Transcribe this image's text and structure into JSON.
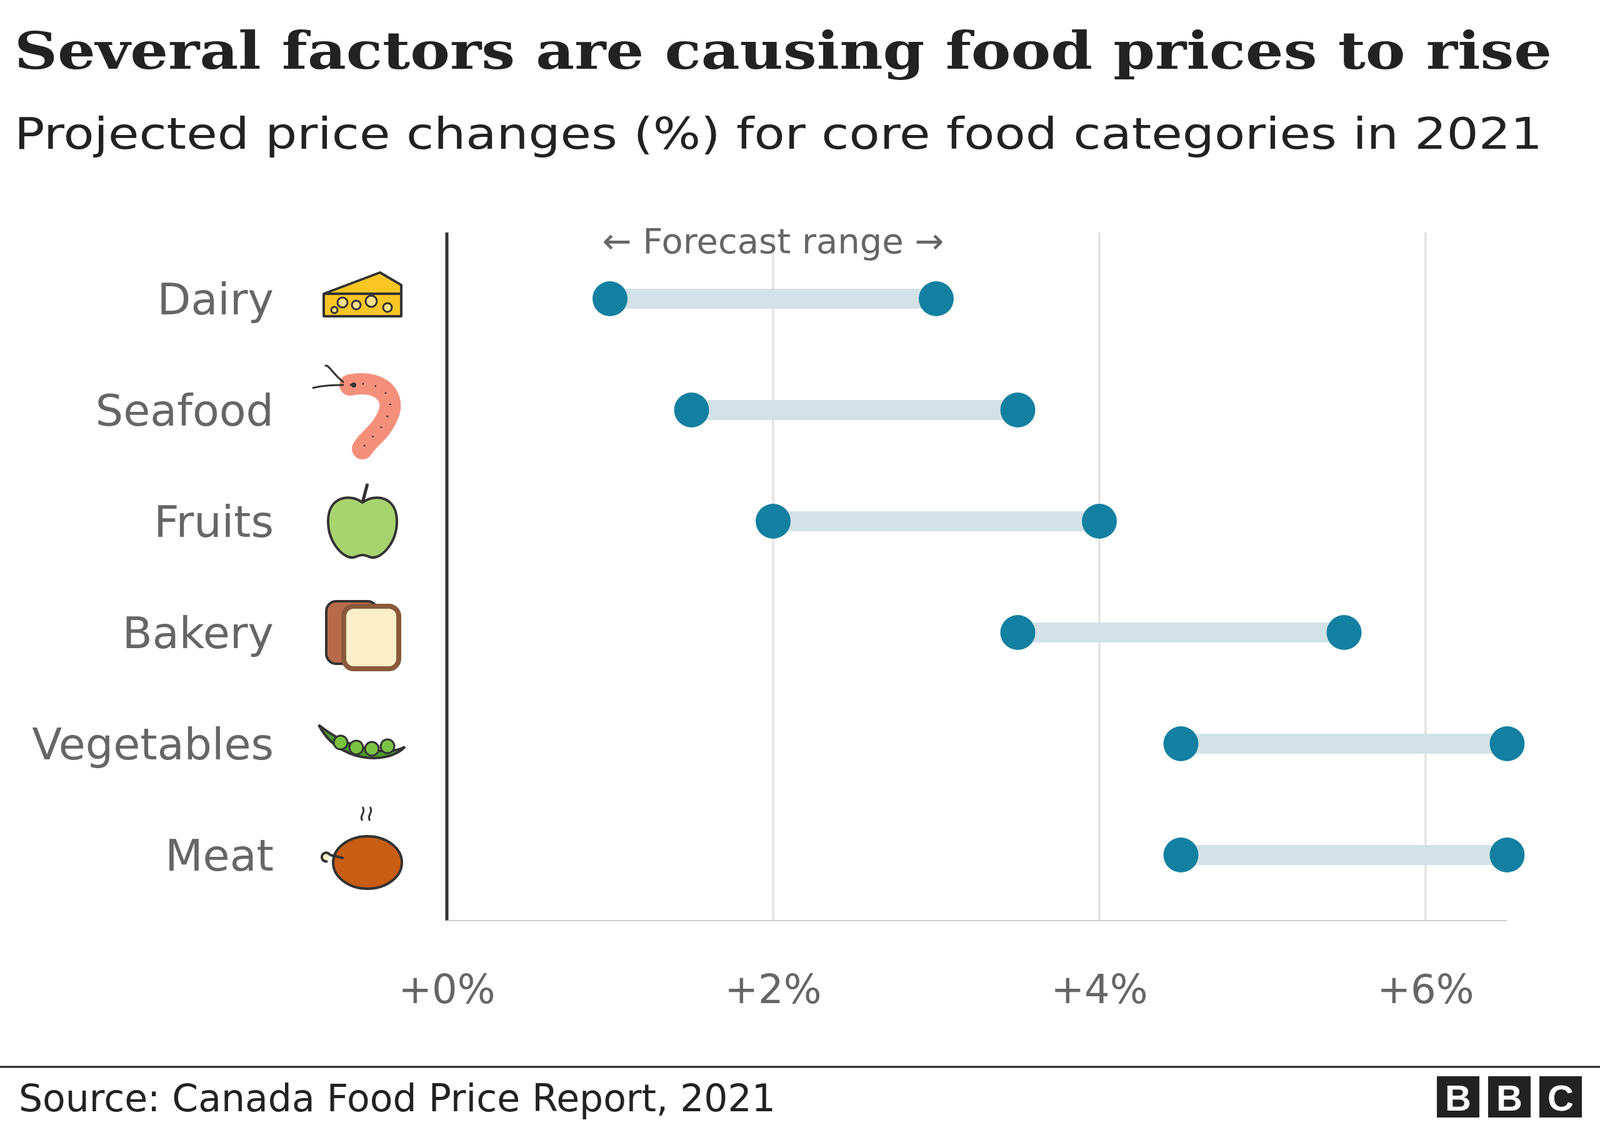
{
  "chart_data": {
    "type": "dumbbell",
    "title": "Several factors are causing food prices to rise",
    "subtitle": "Projected price changes (%) for core food categories in 2021",
    "annotation": "← Forecast range →",
    "source": "Source: Canada Food Price Report, 2021",
    "logo": "BBC",
    "categories": [
      "Dairy",
      "Seafood",
      "Fruits",
      "Bakery",
      "Vegetables",
      "Meat"
    ],
    "low": [
      1,
      1.5,
      2,
      3.5,
      4.5,
      4.5
    ],
    "high": [
      3,
      3.5,
      4,
      5.5,
      6.5,
      6.5
    ],
    "color": "#1380A1",
    "orientation": "horizontal",
    "grid": true,
    "xlim": [
      0,
      6.5
    ],
    "xticks": [
      {
        "value": 0,
        "label": "+0%"
      },
      {
        "value": 2,
        "label": "+2%"
      },
      {
        "value": 4,
        "label": "+4%"
      },
      {
        "value": 6,
        "label": "+6%"
      }
    ]
  }
}
